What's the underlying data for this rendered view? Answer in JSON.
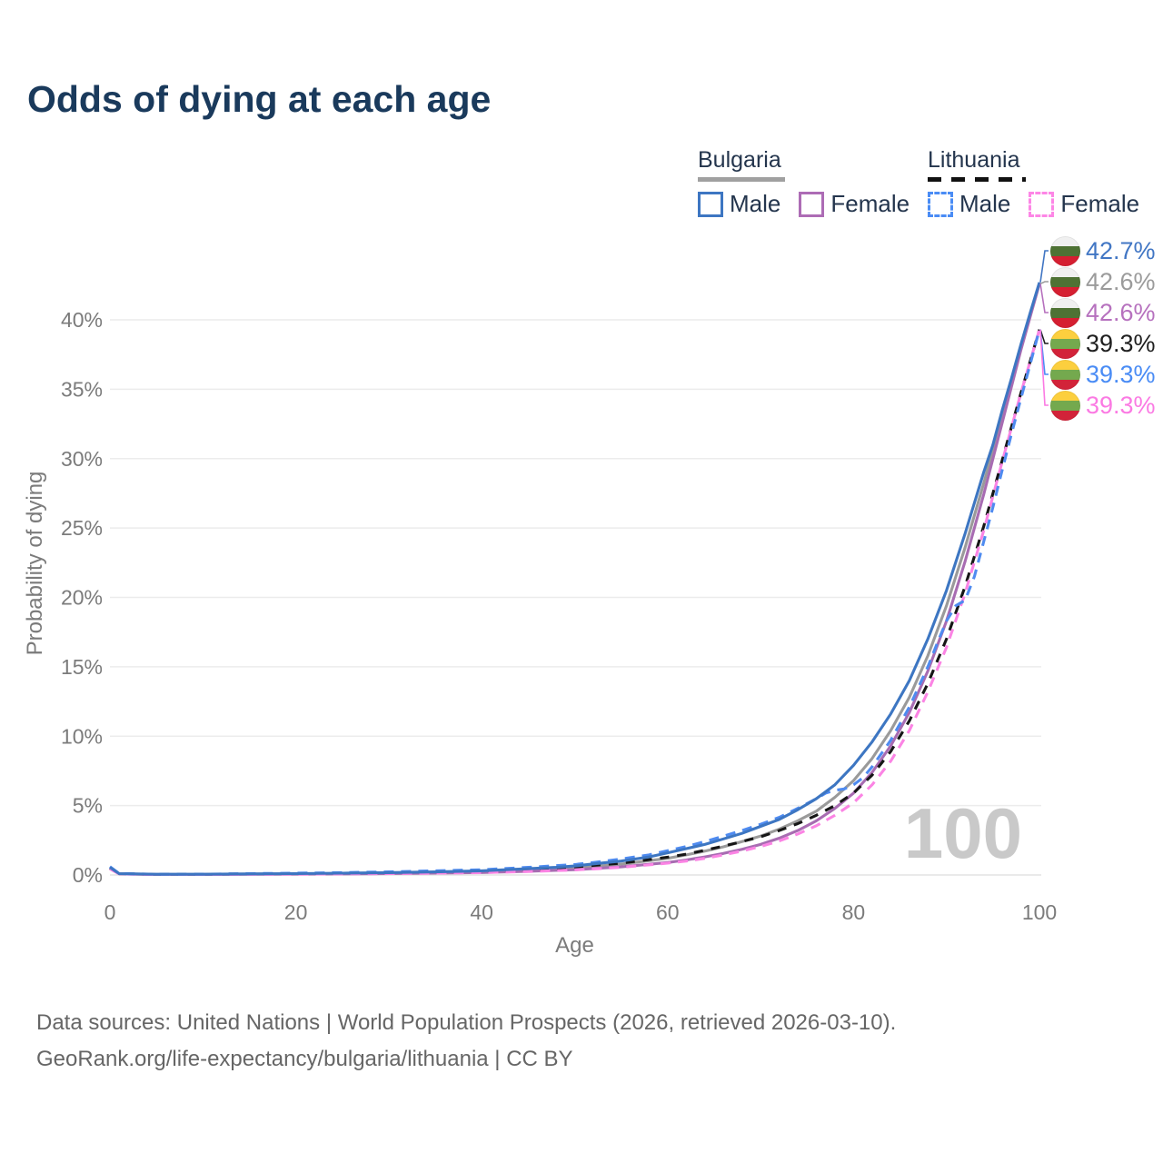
{
  "title": "Odds of dying at each age",
  "legend": {
    "groups": [
      {
        "name": "Bulgaria",
        "line_style": "solid",
        "items": [
          {
            "label": "Male",
            "color": "#3d76c2",
            "dashed": false
          },
          {
            "label": "Female",
            "color": "#ad6cb5",
            "dashed": false
          }
        ]
      },
      {
        "name": "Lithuania",
        "line_style": "dashed",
        "items": [
          {
            "label": "Male",
            "color": "#4a8cf5",
            "dashed": true
          },
          {
            "label": "Female",
            "color": "#fd86e6",
            "dashed": true
          }
        ]
      }
    ]
  },
  "flags": {
    "bulgaria": [
      "#f0f0f0",
      "#4e7234",
      "#d51f31"
    ],
    "lithuania": [
      "#fccf3e",
      "#74a94e",
      "#d22339"
    ]
  },
  "chart_data": {
    "type": "line",
    "title": "Odds of dying at each age",
    "xlabel": "Age",
    "ylabel": "Probability of dying",
    "xlim": [
      0,
      100
    ],
    "ylim": [
      0,
      44
    ],
    "xticks": [
      0,
      20,
      40,
      60,
      80,
      100
    ],
    "yticks": [
      {
        "v": 0,
        "label": "0%"
      },
      {
        "v": 5,
        "label": "5%"
      },
      {
        "v": 10,
        "label": "10%"
      },
      {
        "v": 15,
        "label": "15%"
      },
      {
        "v": 20,
        "label": "20%"
      },
      {
        "v": 25,
        "label": "25%"
      },
      {
        "v": 30,
        "label": "30%"
      },
      {
        "v": 35,
        "label": "35%"
      },
      {
        "v": 40,
        "label": "40%"
      }
    ],
    "grid": "horizontal",
    "legend_position": "top-right",
    "watermark": "100",
    "series": [
      {
        "name": "Bulgaria Both",
        "country": "Bulgaria",
        "sex": "both",
        "color": "#9a9a9a",
        "dash": "",
        "points": [
          [
            0,
            0.5
          ],
          [
            1,
            0.09
          ],
          [
            5,
            0.04
          ],
          [
            10,
            0.04
          ],
          [
            15,
            0.07
          ],
          [
            20,
            0.08
          ],
          [
            25,
            0.1
          ],
          [
            30,
            0.13
          ],
          [
            35,
            0.17
          ],
          [
            40,
            0.24
          ],
          [
            45,
            0.36
          ],
          [
            50,
            0.5
          ],
          [
            55,
            0.78
          ],
          [
            60,
            1.2
          ],
          [
            62,
            1.45
          ],
          [
            64,
            1.72
          ],
          [
            66,
            2.03
          ],
          [
            68,
            2.4
          ],
          [
            70,
            2.8
          ],
          [
            72,
            3.3
          ],
          [
            74,
            3.9
          ],
          [
            76,
            4.6
          ],
          [
            78,
            5.6
          ],
          [
            80,
            6.8
          ],
          [
            82,
            8.4
          ],
          [
            84,
            10.4
          ],
          [
            86,
            12.8
          ],
          [
            88,
            15.8
          ],
          [
            90,
            19.4
          ],
          [
            92,
            23.6
          ],
          [
            94,
            28.2
          ],
          [
            96,
            33.1
          ],
          [
            98,
            38.0
          ],
          [
            100,
            42.6
          ]
        ]
      },
      {
        "name": "Bulgaria Female",
        "country": "Bulgaria",
        "sex": "female",
        "color": "#a86cb2",
        "dash": "",
        "points": [
          [
            0,
            0.45
          ],
          [
            1,
            0.08
          ],
          [
            5,
            0.03
          ],
          [
            10,
            0.03
          ],
          [
            15,
            0.05
          ],
          [
            20,
            0.06
          ],
          [
            25,
            0.08
          ],
          [
            30,
            0.1
          ],
          [
            35,
            0.13
          ],
          [
            40,
            0.18
          ],
          [
            45,
            0.27
          ],
          [
            50,
            0.38
          ],
          [
            55,
            0.58
          ],
          [
            60,
            0.9
          ],
          [
            62,
            1.08
          ],
          [
            64,
            1.3
          ],
          [
            66,
            1.55
          ],
          [
            68,
            1.85
          ],
          [
            70,
            2.2
          ],
          [
            72,
            2.65
          ],
          [
            74,
            3.2
          ],
          [
            76,
            3.9
          ],
          [
            78,
            4.8
          ],
          [
            80,
            5.9
          ],
          [
            82,
            7.4
          ],
          [
            84,
            9.3
          ],
          [
            86,
            11.7
          ],
          [
            88,
            14.7
          ],
          [
            90,
            18.3
          ],
          [
            92,
            22.6
          ],
          [
            94,
            27.4
          ],
          [
            96,
            32.6
          ],
          [
            98,
            37.8
          ],
          [
            100,
            42.6
          ]
        ]
      },
      {
        "name": "Lithuania Both",
        "country": "Lithuania",
        "sex": "both",
        "color": "#161616",
        "dash": "10 9",
        "points": [
          [
            0,
            0.52
          ],
          [
            1,
            0.09
          ],
          [
            5,
            0.04
          ],
          [
            10,
            0.05
          ],
          [
            15,
            0.08
          ],
          [
            20,
            0.1
          ],
          [
            25,
            0.13
          ],
          [
            30,
            0.17
          ],
          [
            35,
            0.22
          ],
          [
            40,
            0.28
          ],
          [
            45,
            0.4
          ],
          [
            50,
            0.58
          ],
          [
            55,
            0.85
          ],
          [
            60,
            1.28
          ],
          [
            62,
            1.5
          ],
          [
            64,
            1.78
          ],
          [
            66,
            2.08
          ],
          [
            68,
            2.4
          ],
          [
            70,
            2.75
          ],
          [
            72,
            3.2
          ],
          [
            74,
            3.7
          ],
          [
            76,
            4.3
          ],
          [
            78,
            5.0
          ],
          [
            80,
            5.9
          ],
          [
            82,
            7.2
          ],
          [
            84,
            8.9
          ],
          [
            86,
            11.1
          ],
          [
            88,
            13.8
          ],
          [
            90,
            17.0
          ],
          [
            92,
            20.8
          ],
          [
            94,
            25.1
          ],
          [
            96,
            29.9
          ],
          [
            98,
            34.7
          ],
          [
            100,
            39.3
          ]
        ]
      },
      {
        "name": "Lithuania Female",
        "country": "Lithuania",
        "sex": "female",
        "color": "#fb84e4",
        "dash": "11 8",
        "points": [
          [
            0,
            0.45
          ],
          [
            1,
            0.07
          ],
          [
            5,
            0.03
          ],
          [
            10,
            0.03
          ],
          [
            15,
            0.05
          ],
          [
            20,
            0.06
          ],
          [
            25,
            0.08
          ],
          [
            30,
            0.1
          ],
          [
            35,
            0.13
          ],
          [
            40,
            0.17
          ],
          [
            45,
            0.25
          ],
          [
            50,
            0.36
          ],
          [
            55,
            0.55
          ],
          [
            60,
            0.85
          ],
          [
            62,
            1.0
          ],
          [
            64,
            1.2
          ],
          [
            66,
            1.45
          ],
          [
            68,
            1.72
          ],
          [
            70,
            2.05
          ],
          [
            72,
            2.45
          ],
          [
            74,
            2.95
          ],
          [
            76,
            3.55
          ],
          [
            78,
            4.3
          ],
          [
            80,
            5.2
          ],
          [
            82,
            6.5
          ],
          [
            84,
            8.2
          ],
          [
            86,
            10.4
          ],
          [
            88,
            13.2
          ],
          [
            90,
            16.4
          ],
          [
            92,
            20.3
          ],
          [
            94,
            24.8
          ],
          [
            96,
            29.8
          ],
          [
            98,
            34.7
          ],
          [
            100,
            39.3
          ]
        ]
      },
      {
        "name": "Lithuania Male",
        "country": "Lithuania",
        "sex": "male",
        "color": "#4f8bf0",
        "dash": "11 8",
        "points": [
          [
            0,
            0.6
          ],
          [
            1,
            0.1
          ],
          [
            5,
            0.05
          ],
          [
            10,
            0.06
          ],
          [
            15,
            0.1
          ],
          [
            20,
            0.13
          ],
          [
            25,
            0.17
          ],
          [
            30,
            0.22
          ],
          [
            35,
            0.3
          ],
          [
            40,
            0.38
          ],
          [
            45,
            0.55
          ],
          [
            50,
            0.75
          ],
          [
            52,
            0.9
          ],
          [
            55,
            1.15
          ],
          [
            58,
            1.45
          ],
          [
            60,
            1.75
          ],
          [
            62,
            2.05
          ],
          [
            64,
            2.4
          ],
          [
            66,
            2.8
          ],
          [
            68,
            3.2
          ],
          [
            70,
            3.65
          ],
          [
            72,
            4.15
          ],
          [
            74,
            4.8
          ],
          [
            76,
            5.5
          ],
          [
            77,
            5.9
          ],
          [
            78,
            6.1
          ],
          [
            79,
            6.2
          ],
          [
            80,
            6.5
          ],
          [
            81,
            7.0
          ],
          [
            82,
            7.8
          ],
          [
            84,
            9.7
          ],
          [
            86,
            12.1
          ],
          [
            88,
            15.0
          ],
          [
            89,
            16.7
          ],
          [
            90,
            18.3
          ],
          [
            91,
            19.4
          ],
          [
            92,
            19.8
          ],
          [
            93,
            21.5
          ],
          [
            94,
            24.0
          ],
          [
            95,
            26.5
          ],
          [
            96,
            29.2
          ],
          [
            97,
            31.8
          ],
          [
            98,
            34.3
          ],
          [
            99,
            36.8
          ],
          [
            100,
            39.3
          ]
        ]
      },
      {
        "name": "Bulgaria Male",
        "country": "Bulgaria",
        "sex": "male",
        "color": "#3d76c2",
        "dash": "",
        "points": [
          [
            0,
            0.55
          ],
          [
            1,
            0.1
          ],
          [
            5,
            0.05
          ],
          [
            10,
            0.05
          ],
          [
            15,
            0.08
          ],
          [
            20,
            0.1
          ],
          [
            25,
            0.13
          ],
          [
            30,
            0.17
          ],
          [
            35,
            0.22
          ],
          [
            40,
            0.3
          ],
          [
            45,
            0.45
          ],
          [
            48,
            0.55
          ],
          [
            50,
            0.65
          ],
          [
            52,
            0.8
          ],
          [
            55,
            1.0
          ],
          [
            58,
            1.3
          ],
          [
            60,
            1.6
          ],
          [
            62,
            1.9
          ],
          [
            64,
            2.2
          ],
          [
            66,
            2.6
          ],
          [
            68,
            3.0
          ],
          [
            70,
            3.5
          ],
          [
            72,
            4.0
          ],
          [
            74,
            4.7
          ],
          [
            76,
            5.5
          ],
          [
            78,
            6.5
          ],
          [
            80,
            7.9
          ],
          [
            82,
            9.6
          ],
          [
            84,
            11.6
          ],
          [
            86,
            14.0
          ],
          [
            88,
            17.0
          ],
          [
            90,
            20.5
          ],
          [
            92,
            24.6
          ],
          [
            94,
            29.0
          ],
          [
            95,
            31.0
          ],
          [
            96,
            33.5
          ],
          [
            97,
            35.8
          ],
          [
            98,
            38.2
          ],
          [
            99,
            40.5
          ],
          [
            100,
            42.7
          ]
        ]
      }
    ],
    "end_labels": [
      {
        "flag": "bulgaria",
        "value": "42.7%",
        "color": "#4176c4",
        "series": "Bulgaria Male",
        "end_v": 42.7
      },
      {
        "flag": "bulgaria",
        "value": "42.6%",
        "color": "#9b9b9b",
        "series": "Bulgaria Both",
        "end_v": 42.6
      },
      {
        "flag": "bulgaria",
        "value": "42.6%",
        "color": "#b671be",
        "series": "Bulgaria Female",
        "end_v": 42.6
      },
      {
        "flag": "lithuania",
        "value": "39.3%",
        "color": "#1f1f1f",
        "series": "Lithuania Both",
        "end_v": 39.3
      },
      {
        "flag": "lithuania",
        "value": "39.3%",
        "color": "#4a8cf5",
        "series": "Lithuania Male",
        "end_v": 39.3
      },
      {
        "flag": "lithuania",
        "value": "39.3%",
        "color": "#fb7ae3",
        "series": "Lithuania Female",
        "end_v": 39.3
      }
    ]
  },
  "footer": {
    "line1": "Data sources: United Nations | World Population Prospects (2026, retrieved 2026-03-10).",
    "line2": "GeoRank.org/life-expectancy/bulgaria/lithuania | CC BY"
  }
}
